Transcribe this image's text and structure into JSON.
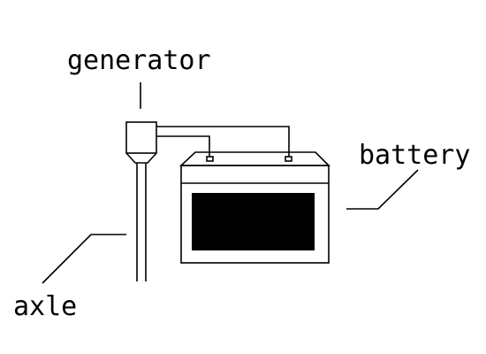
{
  "labels": {
    "generator": "generator",
    "battery": "battery",
    "axle": "axle"
  },
  "colors": {
    "line": "#000000",
    "battery_panel": "#000000",
    "background": "#ffffff"
  }
}
